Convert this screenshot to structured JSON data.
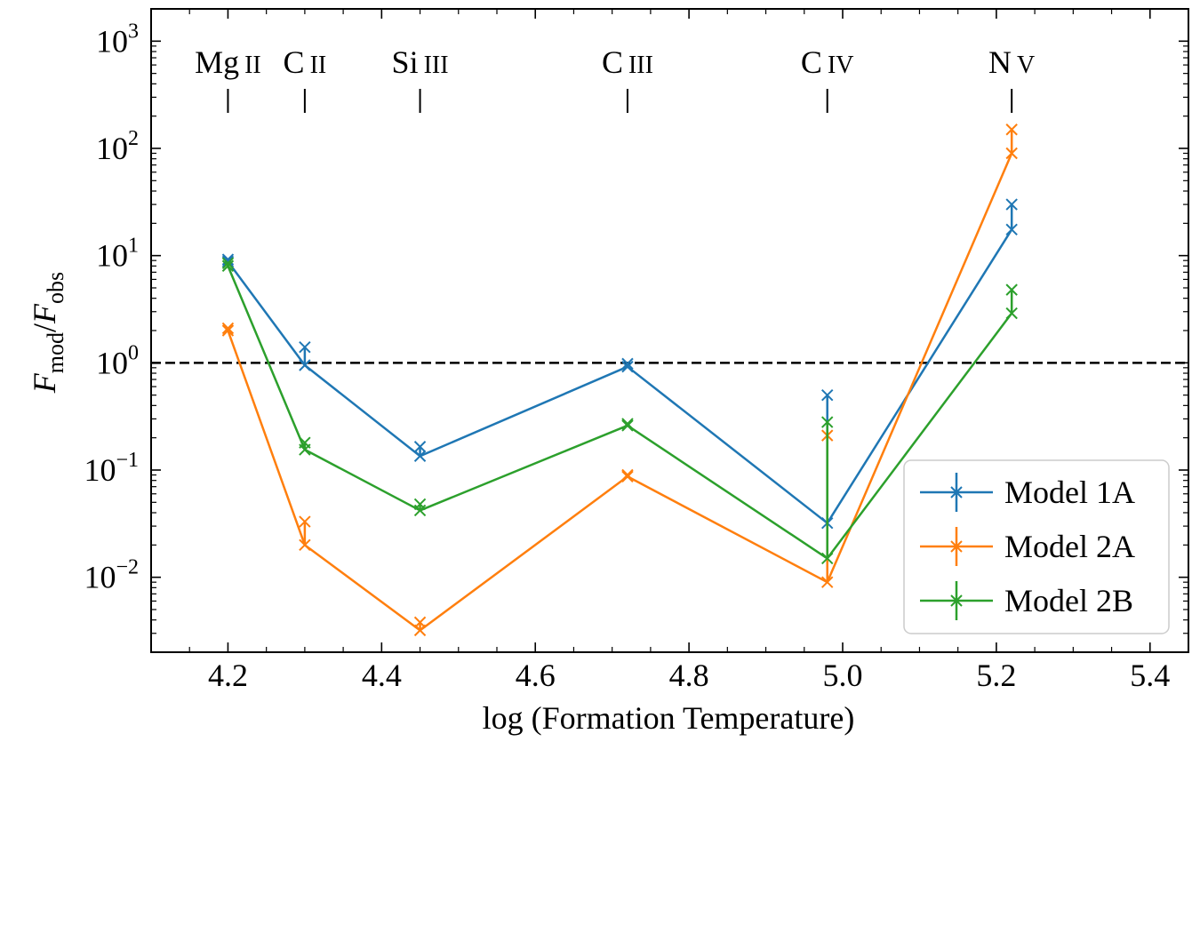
{
  "chart_data": {
    "type": "line",
    "xlabel": "log (Formation Temperature)",
    "ylabel": {
      "main": "F",
      "sub_mod": "mod",
      "slash": "/",
      "sub_obs": "obs"
    },
    "xlim": [
      4.1,
      5.45
    ],
    "ylim": [
      0.002,
      2000
    ],
    "yscale": "log",
    "x_ticks": [
      "4.2",
      "4.4",
      "4.6",
      "4.8",
      "5.0",
      "5.2",
      "5.4"
    ],
    "x_tick_values": [
      4.2,
      4.4,
      4.6,
      4.8,
      5.0,
      5.2,
      5.4
    ],
    "y_ticks": [
      {
        "value": 0.01,
        "base": "10",
        "exp": "−2"
      },
      {
        "value": 0.1,
        "base": "10",
        "exp": "−1"
      },
      {
        "value": 1,
        "base": "10",
        "exp": "0"
      },
      {
        "value": 10,
        "base": "10",
        "exp": "1"
      },
      {
        "value": 100,
        "base": "10",
        "exp": "2"
      },
      {
        "value": 1000,
        "base": "10",
        "exp": "3"
      }
    ],
    "reference_line": {
      "y": 1,
      "style": "dashed",
      "color": "#000000"
    },
    "ions": [
      {
        "x": 4.2,
        "element": "Mg",
        "stage": "II"
      },
      {
        "x": 4.3,
        "element": "C",
        "stage": "II"
      },
      {
        "x": 4.45,
        "element": "Si",
        "stage": "III"
      },
      {
        "x": 4.72,
        "element": "C",
        "stage": "III"
      },
      {
        "x": 4.98,
        "element": "C",
        "stage": "IV"
      },
      {
        "x": 5.22,
        "element": "N",
        "stage": "V"
      }
    ],
    "x": [
      4.2,
      4.3,
      4.45,
      4.72,
      4.98,
      5.22
    ],
    "series": [
      {
        "name": "Model 1A",
        "color": "#1f77b4",
        "values": [
          8.8,
          0.95,
          0.135,
          0.92,
          0.032,
          17.5
        ],
        "error_high": [
          9.2,
          1.4,
          0.165,
          0.98,
          0.5,
          30.0
        ]
      },
      {
        "name": "Model 2A",
        "color": "#ff7f0e",
        "values": [
          2.0,
          0.02,
          0.0032,
          0.087,
          0.009,
          90.0
        ],
        "error_high": [
          2.1,
          0.033,
          0.0038,
          0.09,
          0.21,
          150.0
        ]
      },
      {
        "name": "Model 2B",
        "color": "#2ca02c",
        "values": [
          8.0,
          0.155,
          0.042,
          0.26,
          0.015,
          2.9
        ],
        "error_high": [
          8.5,
          0.18,
          0.048,
          0.27,
          0.28,
          4.8
        ]
      }
    ],
    "legend": {
      "position": "lower-right"
    },
    "grid": false
  }
}
